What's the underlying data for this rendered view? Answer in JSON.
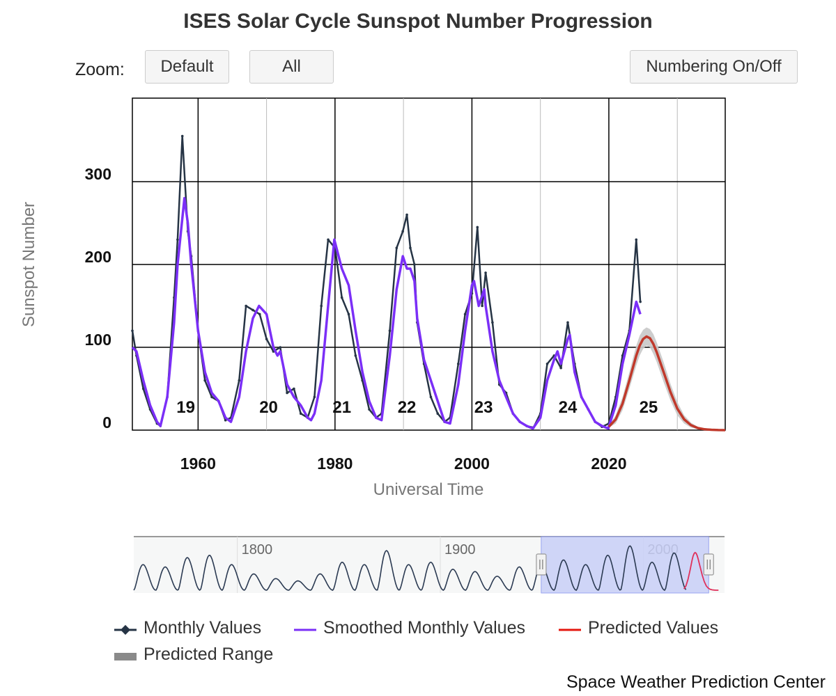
{
  "header": {
    "title": "ISES Solar Cycle Sunspot Number Progression"
  },
  "toolbar": {
    "zoom_label": "Zoom:",
    "default_label": "Default",
    "all_label": "All",
    "numbering_label": "Numbering On/Off"
  },
  "legend": {
    "monthly": "Monthly Values",
    "smoothed": "Smoothed Monthly Values",
    "predicted": "Predicted Values",
    "range": "Predicted Range"
  },
  "footer": {
    "credit": "Space Weather Prediction Center"
  },
  "colors": {
    "monthly": "#263445",
    "smoothed": "#7b2ff7",
    "predicted": "#c0392b",
    "range": "#c8c8c8",
    "navigator_select": "#c9d0f8"
  },
  "chart_data": {
    "type": "line",
    "title": "ISES Solar Cycle Sunspot Number Progression",
    "xlabel": "Universal Time",
    "ylabel": "Sunspot Number",
    "xlim": [
      1950.4,
      2037.0
    ],
    "ylim": [
      0,
      400
    ],
    "x_ticks": [
      1960,
      1980,
      2000,
      2020
    ],
    "y_ticks": [
      0,
      100,
      200,
      300
    ],
    "grid": true,
    "legend_position": "bottom",
    "cycle_labels": [
      {
        "label": "19",
        "x": 1958.2
      },
      {
        "label": "20",
        "x": 1970.3
      },
      {
        "label": "21",
        "x": 1981.0
      },
      {
        "label": "22",
        "x": 1990.5
      },
      {
        "label": "23",
        "x": 2001.7
      },
      {
        "label": "24",
        "x": 2014.0
      },
      {
        "label": "25",
        "x": 2025.8
      }
    ],
    "series": [
      {
        "name": "Monthly Values",
        "x": [
          1950.4,
          1951,
          1952,
          1953,
          1954,
          1954.5,
          1955.5,
          1956.5,
          1957,
          1957.7,
          1958.5,
          1959,
          1960,
          1961,
          1962,
          1963,
          1964,
          1964.8,
          1966,
          1967,
          1968,
          1969,
          1970,
          1971,
          1972,
          1973,
          1974,
          1975,
          1976,
          1977,
          1978,
          1979,
          1980,
          1981,
          1982,
          1983,
          1984,
          1985,
          1986,
          1986.8,
          1988,
          1989,
          1989.9,
          1990.5,
          1991,
          1991.6,
          1992,
          1993,
          1994,
          1995,
          1996,
          1996.8,
          1998,
          1999,
          2000,
          2000.8,
          2001.5,
          2002,
          2003,
          2004,
          2005,
          2006,
          2007,
          2008,
          2009,
          2010,
          2011,
          2012,
          2013,
          2014,
          2015,
          2016,
          2017,
          2018,
          2019,
          2020,
          2021,
          2022,
          2023,
          2024.0,
          2024.6
        ],
        "y": [
          120,
          90,
          50,
          25,
          8,
          5,
          40,
          160,
          230,
          355,
          240,
          210,
          120,
          60,
          40,
          35,
          12,
          15,
          60,
          150,
          145,
          140,
          110,
          95,
          100,
          45,
          50,
          20,
          15,
          40,
          150,
          230,
          220,
          160,
          140,
          90,
          60,
          25,
          15,
          20,
          120,
          220,
          240,
          260,
          220,
          200,
          130,
          80,
          40,
          20,
          10,
          15,
          80,
          140,
          165,
          245,
          150,
          190,
          130,
          55,
          45,
          20,
          10,
          5,
          3,
          20,
          80,
          90,
          75,
          130,
          80,
          40,
          25,
          10,
          4,
          8,
          40,
          90,
          120,
          230,
          155
        ]
      },
      {
        "name": "Smoothed Monthly Values",
        "x": [
          1950.4,
          1951,
          1952,
          1953,
          1954,
          1954.5,
          1955.5,
          1956.5,
          1957,
          1958,
          1958.5,
          1959,
          1960,
          1961,
          1962,
          1963,
          1964,
          1964.8,
          1966,
          1967,
          1968,
          1968.9,
          1970,
          1971,
          1971.6,
          1972,
          1973,
          1974,
          1975,
          1976,
          1976.5,
          1977,
          1978,
          1979,
          1979.9,
          1981,
          1982,
          1983,
          1984,
          1985,
          1986,
          1986.8,
          1988,
          1989,
          1989.9,
          1990.5,
          1991,
          1991.6,
          1992,
          1993,
          1994,
          1995,
          1996,
          1996.8,
          1998,
          1999,
          2000,
          2000.3,
          2001,
          2001.8,
          2002,
          2003,
          2004,
          2005,
          2006,
          2007,
          2008,
          2008.9,
          2010,
          2011,
          2012,
          2012.5,
          2013,
          2014,
          2014.3,
          2015,
          2016,
          2017,
          2018,
          2019,
          2019.9,
          2021,
          2022,
          2023,
          2024,
          2024.6
        ],
        "y": [
          100,
          95,
          60,
          30,
          10,
          5,
          40,
          130,
          200,
          280,
          250,
          200,
          120,
          70,
          45,
          35,
          15,
          10,
          40,
          95,
          135,
          150,
          140,
          100,
          90,
          95,
          55,
          40,
          30,
          15,
          12,
          20,
          60,
          150,
          230,
          195,
          175,
          120,
          70,
          35,
          15,
          12,
          90,
          170,
          210,
          195,
          195,
          180,
          135,
          85,
          60,
          35,
          10,
          8,
          55,
          120,
          175,
          180,
          150,
          170,
          150,
          95,
          60,
          40,
          20,
          10,
          5,
          2,
          15,
          60,
          85,
          95,
          80,
          110,
          115,
          70,
          40,
          25,
          10,
          5,
          2,
          30,
          80,
          115,
          155,
          140
        ]
      },
      {
        "name": "Predicted Values",
        "x": [
          2020.0,
          2021.0,
          2022.0,
          2023.0,
          2024.0,
          2024.5,
          2025.0,
          2025.5,
          2026.0,
          2026.5,
          2027.0,
          2028.0,
          2029.0,
          2030.0,
          2031.0,
          2032.0,
          2033.0,
          2034.0,
          2035.0,
          2036.0,
          2037.0
        ],
        "y": [
          4,
          13,
          32,
          60,
          90,
          102,
          110,
          113,
          111,
          104,
          94,
          70,
          46,
          26,
          13,
          6,
          2.5,
          1,
          0.4,
          0.1,
          0
        ]
      },
      {
        "name": "Predicted Range",
        "x": [
          2020.0,
          2021.0,
          2022.0,
          2023.0,
          2024.0,
          2024.5,
          2025.0,
          2025.5,
          2026.0,
          2026.5,
          2027.0,
          2028.0,
          2029.0,
          2030.0,
          2031.0,
          2032.0,
          2033.0,
          2034.0,
          2035.0,
          2036.0,
          2037.0
        ],
        "upper": [
          5,
          18,
          40,
          70,
          102,
          114,
          121,
          124,
          122,
          116,
          106,
          82,
          56,
          34,
          18,
          9,
          4,
          1.5,
          0.6,
          0.2,
          0
        ],
        "lower": [
          3,
          8,
          24,
          50,
          78,
          90,
          98,
          102,
          100,
          92,
          82,
          58,
          36,
          18,
          8,
          3,
          1,
          0.4,
          0.1,
          0,
          0
        ]
      }
    ],
    "navigator": {
      "x_ticks": [
        1800,
        1900,
        2000
      ],
      "xlim": [
        1749,
        2040
      ],
      "selected_range": [
        1950.4,
        2037.0
      ]
    }
  }
}
